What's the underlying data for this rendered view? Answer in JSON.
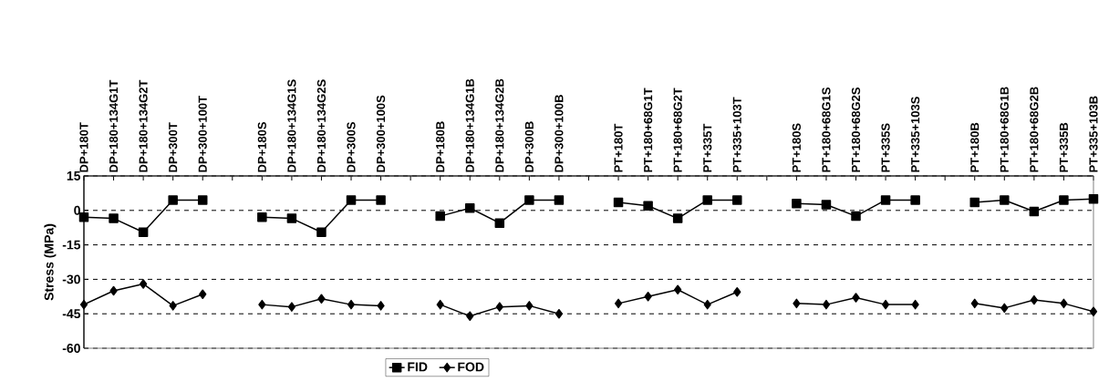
{
  "chart_data": {
    "type": "line",
    "ylabel": "Stress (MPa)",
    "categories": [
      "DP+180T",
      "DP+180+134G1T",
      "DP+180+134G2T",
      "DP+300T",
      "DP+300+100T",
      null,
      "DP+180S",
      "DP+180+134G1S",
      "DP+180+134G2S",
      "DP+300S",
      "DP+300+100S",
      null,
      "DP+180B",
      "DP+180+134G1B",
      "DP+180+134G2B",
      "DP+300B",
      "DP+300+100B",
      null,
      "PT+180T",
      "PT+180+68G1T",
      "PT+180+68G2T",
      "PT+335T",
      "PT+335+103T",
      null,
      "PT+180S",
      "PT+180+68G1S",
      "PT+180+68G2S",
      "PT+335S",
      "PT+335+103S",
      null,
      "PT+180B",
      "PT+180+68G1B",
      "PT+180+68G2B",
      "PT+335B",
      "PT+335+103B"
    ],
    "series": [
      {
        "name": "FID",
        "color": "#000000",
        "marker": "square",
        "values": [
          -3,
          -3.5,
          -9.5,
          4.5,
          4.5,
          null,
          -3,
          -3.5,
          -9.5,
          4.5,
          4.5,
          null,
          -2.5,
          1,
          -5.5,
          4.5,
          4.5,
          null,
          3.5,
          2,
          -3.5,
          4.5,
          4.5,
          null,
          3,
          2.5,
          -2.5,
          4.5,
          4.5,
          null,
          3.5,
          4.5,
          -0.5,
          4.5,
          5
        ]
      },
      {
        "name": "FOD",
        "color": "#000000",
        "marker": "diamond",
        "values": [
          -41,
          -35,
          -32,
          -41.5,
          -36.5,
          null,
          -41,
          -42,
          -38.5,
          -41,
          -41.5,
          null,
          -41,
          -46,
          -42,
          -41.5,
          -45,
          null,
          -40.5,
          -37.5,
          -34.5,
          -41,
          -35.5,
          null,
          -40.5,
          -41,
          -38,
          -41,
          -41,
          null,
          -40.5,
          -42.5,
          -39,
          -40.5,
          -44
        ]
      }
    ],
    "ylim": [
      -60,
      15
    ],
    "yticks": [
      15,
      0,
      -15,
      -30,
      -45,
      -60
    ],
    "grid": "y",
    "legend": "bottom",
    "line_style": "solid"
  }
}
